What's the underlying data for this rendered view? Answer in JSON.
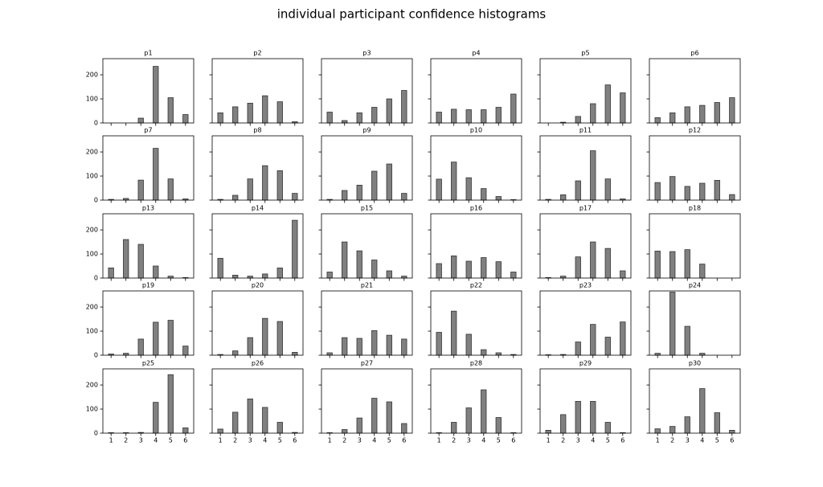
{
  "title": "individual participant confidence histograms",
  "chart_data": [
    {
      "type": "bar",
      "title": "p1",
      "x": [
        1,
        2,
        3,
        4,
        5,
        6
      ],
      "values": [
        0,
        0,
        20,
        235,
        105,
        35
      ],
      "xlim": [
        0.45,
        6.55
      ],
      "ylim": [
        0,
        267
      ],
      "xticks": [
        1,
        2,
        3,
        4,
        5,
        6
      ],
      "yticks": [
        0,
        100,
        200
      ],
      "color": "#808080"
    },
    {
      "type": "bar",
      "title": "p2",
      "x": [
        1,
        2,
        3,
        4,
        5,
        6
      ],
      "values": [
        42,
        67,
        82,
        113,
        88,
        5
      ],
      "xlim": [
        0.45,
        6.55
      ],
      "ylim": [
        0,
        267
      ],
      "xticks": [
        1,
        2,
        3,
        4,
        5,
        6
      ],
      "yticks": [
        0,
        100,
        200
      ],
      "color": "#808080"
    },
    {
      "type": "bar",
      "title": "p3",
      "x": [
        1,
        2,
        3,
        4,
        5,
        6
      ],
      "values": [
        45,
        10,
        42,
        65,
        100,
        135
      ],
      "xlim": [
        0.45,
        6.55
      ],
      "ylim": [
        0,
        267
      ],
      "xticks": [
        1,
        2,
        3,
        4,
        5,
        6
      ],
      "yticks": [
        0,
        100,
        200
      ],
      "color": "#808080"
    },
    {
      "type": "bar",
      "title": "p4",
      "x": [
        1,
        2,
        3,
        4,
        5,
        6
      ],
      "values": [
        45,
        57,
        55,
        55,
        65,
        120
      ],
      "xlim": [
        0.45,
        6.55
      ],
      "ylim": [
        0,
        267
      ],
      "xticks": [
        1,
        2,
        3,
        4,
        5,
        6
      ],
      "yticks": [
        0,
        100,
        200
      ],
      "color": "#808080"
    },
    {
      "type": "bar",
      "title": "p5",
      "x": [
        1,
        2,
        3,
        4,
        5,
        6
      ],
      "values": [
        0,
        3,
        27,
        80,
        158,
        125
      ],
      "xlim": [
        0.45,
        6.55
      ],
      "ylim": [
        0,
        267
      ],
      "xticks": [
        1,
        2,
        3,
        4,
        5,
        6
      ],
      "yticks": [
        0,
        100,
        200
      ],
      "color": "#808080"
    },
    {
      "type": "bar",
      "title": "p6",
      "x": [
        1,
        2,
        3,
        4,
        5,
        6
      ],
      "values": [
        22,
        42,
        67,
        73,
        85,
        105
      ],
      "xlim": [
        0.45,
        6.55
      ],
      "ylim": [
        0,
        267
      ],
      "xticks": [
        1,
        2,
        3,
        4,
        5,
        6
      ],
      "yticks": [
        0,
        100,
        200
      ],
      "color": "#808080"
    },
    {
      "type": "bar",
      "title": "p7",
      "x": [
        1,
        2,
        3,
        4,
        5,
        6
      ],
      "values": [
        3,
        7,
        83,
        215,
        88,
        5
      ],
      "xlim": [
        0.45,
        6.55
      ],
      "ylim": [
        0,
        267
      ],
      "xticks": [
        1,
        2,
        3,
        4,
        5,
        6
      ],
      "yticks": [
        0,
        100,
        200
      ],
      "color": "#808080"
    },
    {
      "type": "bar",
      "title": "p8",
      "x": [
        1,
        2,
        3,
        4,
        5,
        6
      ],
      "values": [
        3,
        20,
        88,
        143,
        122,
        28
      ],
      "xlim": [
        0.45,
        6.55
      ],
      "ylim": [
        0,
        267
      ],
      "xticks": [
        1,
        2,
        3,
        4,
        5,
        6
      ],
      "yticks": [
        0,
        100,
        200
      ],
      "color": "#808080"
    },
    {
      "type": "bar",
      "title": "p9",
      "x": [
        1,
        2,
        3,
        4,
        5,
        6
      ],
      "values": [
        3,
        40,
        62,
        120,
        150,
        28
      ],
      "xlim": [
        0.45,
        6.55
      ],
      "ylim": [
        0,
        267
      ],
      "xticks": [
        1,
        2,
        3,
        4,
        5,
        6
      ],
      "yticks": [
        0,
        100,
        200
      ],
      "color": "#808080"
    },
    {
      "type": "bar",
      "title": "p10",
      "x": [
        1,
        2,
        3,
        4,
        5,
        6
      ],
      "values": [
        87,
        158,
        93,
        48,
        15,
        2
      ],
      "xlim": [
        0.45,
        6.55
      ],
      "ylim": [
        0,
        267
      ],
      "xticks": [
        1,
        2,
        3,
        4,
        5,
        6
      ],
      "yticks": [
        0,
        100,
        200
      ],
      "color": "#808080"
    },
    {
      "type": "bar",
      "title": "p11",
      "x": [
        1,
        2,
        3,
        4,
        5,
        6
      ],
      "values": [
        3,
        22,
        80,
        205,
        88,
        5
      ],
      "xlim": [
        0.45,
        6.55
      ],
      "ylim": [
        0,
        267
      ],
      "xticks": [
        1,
        2,
        3,
        4,
        5,
        6
      ],
      "yticks": [
        0,
        100,
        200
      ],
      "color": "#808080"
    },
    {
      "type": "bar",
      "title": "p12",
      "x": [
        1,
        2,
        3,
        4,
        5,
        6
      ],
      "values": [
        73,
        98,
        57,
        70,
        82,
        23
      ],
      "xlim": [
        0.45,
        6.55
      ],
      "ylim": [
        0,
        267
      ],
      "xticks": [
        1,
        2,
        3,
        4,
        5,
        6
      ],
      "yticks": [
        0,
        100,
        200
      ],
      "color": "#808080"
    },
    {
      "type": "bar",
      "title": "p13",
      "x": [
        1,
        2,
        3,
        4,
        5,
        6
      ],
      "values": [
        42,
        160,
        140,
        50,
        8,
        2
      ],
      "xlim": [
        0.45,
        6.55
      ],
      "ylim": [
        0,
        267
      ],
      "xticks": [
        1,
        2,
        3,
        4,
        5,
        6
      ],
      "yticks": [
        0,
        100,
        200
      ],
      "color": "#808080"
    },
    {
      "type": "bar",
      "title": "p14",
      "x": [
        1,
        2,
        3,
        4,
        5,
        6
      ],
      "values": [
        82,
        12,
        8,
        17,
        42,
        240
      ],
      "xlim": [
        0.45,
        6.55
      ],
      "ylim": [
        0,
        267
      ],
      "xticks": [
        1,
        2,
        3,
        4,
        5,
        6
      ],
      "yticks": [
        0,
        100,
        200
      ],
      "color": "#808080"
    },
    {
      "type": "bar",
      "title": "p15",
      "x": [
        1,
        2,
        3,
        4,
        5,
        6
      ],
      "values": [
        25,
        150,
        113,
        75,
        30,
        8
      ],
      "xlim": [
        0.45,
        6.55
      ],
      "ylim": [
        0,
        267
      ],
      "xticks": [
        1,
        2,
        3,
        4,
        5,
        6
      ],
      "yticks": [
        0,
        100,
        200
      ],
      "color": "#808080"
    },
    {
      "type": "bar",
      "title": "p16",
      "x": [
        1,
        2,
        3,
        4,
        5,
        6
      ],
      "values": [
        60,
        92,
        70,
        85,
        68,
        25
      ],
      "xlim": [
        0.45,
        6.55
      ],
      "ylim": [
        0,
        267
      ],
      "xticks": [
        1,
        2,
        3,
        4,
        5,
        6
      ],
      "yticks": [
        0,
        100,
        200
      ],
      "color": "#808080"
    },
    {
      "type": "bar",
      "title": "p17",
      "x": [
        1,
        2,
        3,
        4,
        5,
        6
      ],
      "values": [
        2,
        8,
        88,
        150,
        123,
        30
      ],
      "xlim": [
        0.45,
        6.55
      ],
      "ylim": [
        0,
        267
      ],
      "xticks": [
        1,
        2,
        3,
        4,
        5,
        6
      ],
      "yticks": [
        0,
        100,
        200
      ],
      "color": "#808080"
    },
    {
      "type": "bar",
      "title": "p18",
      "x": [
        1,
        2,
        3,
        4,
        5,
        6
      ],
      "values": [
        112,
        110,
        118,
        58,
        0,
        0
      ],
      "xlim": [
        0.45,
        6.55
      ],
      "ylim": [
        0,
        267
      ],
      "xticks": [
        1,
        2,
        3,
        4,
        5,
        6
      ],
      "yticks": [
        0,
        100,
        200
      ],
      "color": "#808080"
    },
    {
      "type": "bar",
      "title": "p19",
      "x": [
        1,
        2,
        3,
        4,
        5,
        6
      ],
      "values": [
        5,
        8,
        67,
        137,
        145,
        38
      ],
      "xlim": [
        0.45,
        6.55
      ],
      "ylim": [
        0,
        267
      ],
      "xticks": [
        1,
        2,
        3,
        4,
        5,
        6
      ],
      "yticks": [
        0,
        100,
        200
      ],
      "color": "#808080"
    },
    {
      "type": "bar",
      "title": "p20",
      "x": [
        1,
        2,
        3,
        4,
        5,
        6
      ],
      "values": [
        3,
        18,
        73,
        153,
        140,
        12
      ],
      "xlim": [
        0.45,
        6.55
      ],
      "ylim": [
        0,
        267
      ],
      "xticks": [
        1,
        2,
        3,
        4,
        5,
        6
      ],
      "yticks": [
        0,
        100,
        200
      ],
      "color": "#808080"
    },
    {
      "type": "bar",
      "title": "p21",
      "x": [
        1,
        2,
        3,
        4,
        5,
        6
      ],
      "values": [
        10,
        73,
        70,
        102,
        83,
        67
      ],
      "xlim": [
        0.45,
        6.55
      ],
      "ylim": [
        0,
        267
      ],
      "xticks": [
        1,
        2,
        3,
        4,
        5,
        6
      ],
      "yticks": [
        0,
        100,
        200
      ],
      "color": "#808080"
    },
    {
      "type": "bar",
      "title": "p22",
      "x": [
        1,
        2,
        3,
        4,
        5,
        6
      ],
      "values": [
        95,
        183,
        87,
        23,
        10,
        3
      ],
      "xlim": [
        0.45,
        6.55
      ],
      "ylim": [
        0,
        267
      ],
      "xticks": [
        1,
        2,
        3,
        4,
        5,
        6
      ],
      "yticks": [
        0,
        100,
        200
      ],
      "color": "#808080"
    },
    {
      "type": "bar",
      "title": "p23",
      "x": [
        1,
        2,
        3,
        4,
        5,
        6
      ],
      "values": [
        2,
        3,
        55,
        128,
        75,
        138
      ],
      "xlim": [
        0.45,
        6.55
      ],
      "ylim": [
        0,
        267
      ],
      "xticks": [
        1,
        2,
        3,
        4,
        5,
        6
      ],
      "yticks": [
        0,
        100,
        200
      ],
      "color": "#808080"
    },
    {
      "type": "bar",
      "title": "p24",
      "x": [
        1,
        2,
        3,
        4,
        5,
        6
      ],
      "values": [
        8,
        262,
        120,
        8,
        0,
        0
      ],
      "xlim": [
        0.45,
        6.55
      ],
      "ylim": [
        0,
        267
      ],
      "xticks": [
        1,
        2,
        3,
        4,
        5,
        6
      ],
      "yticks": [
        0,
        100,
        200
      ],
      "color": "#808080"
    },
    {
      "type": "bar",
      "title": "p25",
      "x": [
        1,
        2,
        3,
        4,
        5,
        6
      ],
      "values": [
        2,
        2,
        3,
        128,
        243,
        22
      ],
      "xlim": [
        0.45,
        6.55
      ],
      "ylim": [
        0,
        267
      ],
      "xticks": [
        1,
        2,
        3,
        4,
        5,
        6
      ],
      "yticks": [
        0,
        100,
        200
      ],
      "color": "#808080"
    },
    {
      "type": "bar",
      "title": "p26",
      "x": [
        1,
        2,
        3,
        4,
        5,
        6
      ],
      "values": [
        17,
        87,
        142,
        107,
        45,
        3
      ],
      "xlim": [
        0.45,
        6.55
      ],
      "ylim": [
        0,
        267
      ],
      "xticks": [
        1,
        2,
        3,
        4,
        5,
        6
      ],
      "yticks": [
        0,
        100,
        200
      ],
      "color": "#808080"
    },
    {
      "type": "bar",
      "title": "p27",
      "x": [
        1,
        2,
        3,
        4,
        5,
        6
      ],
      "values": [
        2,
        15,
        63,
        145,
        130,
        40
      ],
      "xlim": [
        0.45,
        6.55
      ],
      "ylim": [
        0,
        267
      ],
      "xticks": [
        1,
        2,
        3,
        4,
        5,
        6
      ],
      "yticks": [
        0,
        100,
        200
      ],
      "color": "#808080"
    },
    {
      "type": "bar",
      "title": "p28",
      "x": [
        1,
        2,
        3,
        4,
        5,
        6
      ],
      "values": [
        2,
        45,
        105,
        180,
        65,
        2
      ],
      "xlim": [
        0.45,
        6.55
      ],
      "ylim": [
        0,
        267
      ],
      "xticks": [
        1,
        2,
        3,
        4,
        5,
        6
      ],
      "yticks": [
        0,
        100,
        200
      ],
      "color": "#808080"
    },
    {
      "type": "bar",
      "title": "p29",
      "x": [
        1,
        2,
        3,
        4,
        5,
        6
      ],
      "values": [
        12,
        77,
        132,
        132,
        45,
        2
      ],
      "xlim": [
        0.45,
        6.55
      ],
      "ylim": [
        0,
        267
      ],
      "xticks": [
        1,
        2,
        3,
        4,
        5,
        6
      ],
      "yticks": [
        0,
        100,
        200
      ],
      "color": "#808080"
    },
    {
      "type": "bar",
      "title": "p30",
      "x": [
        1,
        2,
        3,
        4,
        5,
        6
      ],
      "values": [
        18,
        28,
        68,
        185,
        85,
        12
      ],
      "xlim": [
        0.45,
        6.55
      ],
      "ylim": [
        0,
        267
      ],
      "xticks": [
        1,
        2,
        3,
        4,
        5,
        6
      ],
      "yticks": [
        0,
        100,
        200
      ],
      "color": "#808080"
    }
  ]
}
